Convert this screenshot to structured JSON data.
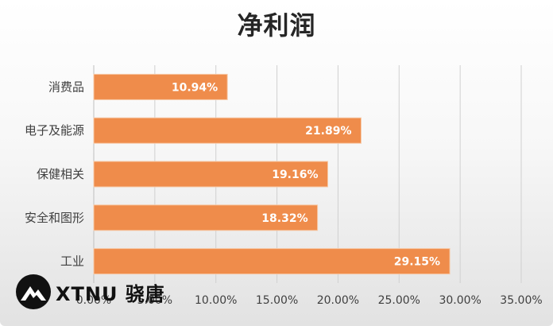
{
  "chart_data": {
    "type": "bar",
    "orientation": "horizontal",
    "title": "净利润",
    "categories": [
      "消费品",
      "电子及能源",
      "保健相关",
      "安全和图形",
      "工业"
    ],
    "values": [
      10.94,
      21.89,
      19.16,
      18.32,
      29.15
    ],
    "value_labels": [
      "10.94%",
      "21.89%",
      "19.16%",
      "18.32%",
      "29.15%"
    ],
    "xlim": [
      0,
      35
    ],
    "x_ticks": [
      "0.00%",
      "5.00%",
      "10.00%",
      "15.00%",
      "20.00%",
      "25.00%",
      "30.00%",
      "35.00%"
    ],
    "grid": true,
    "bar_color": "#ef8c4b",
    "xlabel": "",
    "ylabel": ""
  },
  "watermark": {
    "text": "XTNU 骁唐",
    "icon": "mountain-logo-icon"
  }
}
